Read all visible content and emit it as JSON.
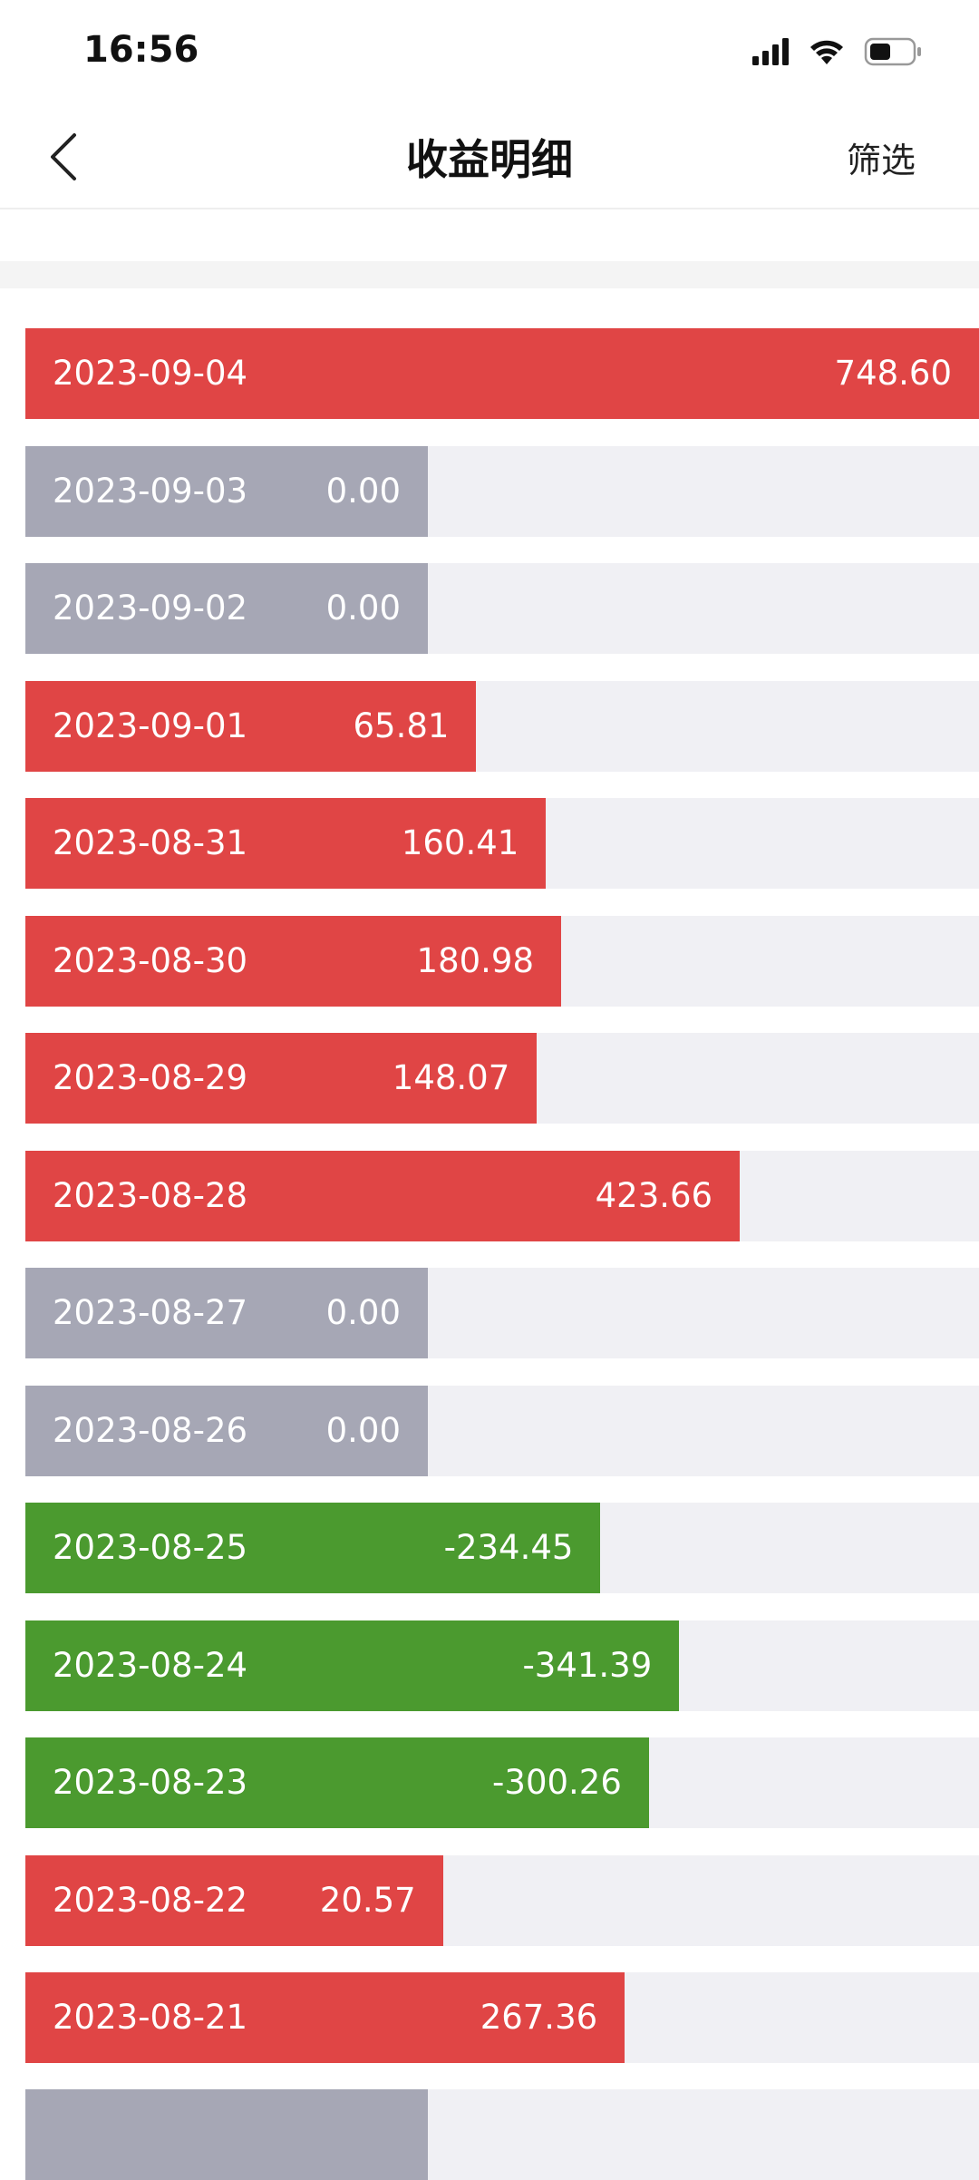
{
  "status_bar": {
    "time": "16:56"
  },
  "header": {
    "title": "收益明细",
    "action": "筛选"
  },
  "colors": {
    "positive": "#e04545",
    "zero": "#a6a7b5",
    "negative": "#4b9a2f",
    "track": "#f0f0f4"
  },
  "rows": [
    {
      "date": "2023-09-04",
      "value": 748.6,
      "value_label": "748.60"
    },
    {
      "date": "2023-09-03",
      "value": 0,
      "value_label": "0.00"
    },
    {
      "date": "2023-09-02",
      "value": 0,
      "value_label": "0.00"
    },
    {
      "date": "2023-09-01",
      "value": 65.81,
      "value_label": "65.81"
    },
    {
      "date": "2023-08-31",
      "value": 160.41,
      "value_label": "160.41"
    },
    {
      "date": "2023-08-30",
      "value": 180.98,
      "value_label": "180.98"
    },
    {
      "date": "2023-08-29",
      "value": 148.07,
      "value_label": "148.07"
    },
    {
      "date": "2023-08-28",
      "value": 423.66,
      "value_label": "423.66"
    },
    {
      "date": "2023-08-27",
      "value": 0,
      "value_label": "0.00"
    },
    {
      "date": "2023-08-26",
      "value": 0,
      "value_label": "0.00"
    },
    {
      "date": "2023-08-25",
      "value": -234.45,
      "value_label": "-234.45"
    },
    {
      "date": "2023-08-24",
      "value": -341.39,
      "value_label": "-341.39"
    },
    {
      "date": "2023-08-23",
      "value": -300.26,
      "value_label": "-300.26"
    },
    {
      "date": "2023-08-22",
      "value": 20.57,
      "value_label": "20.57"
    },
    {
      "date": "2023-08-21",
      "value": 267.36,
      "value_label": "267.36"
    }
  ]
}
